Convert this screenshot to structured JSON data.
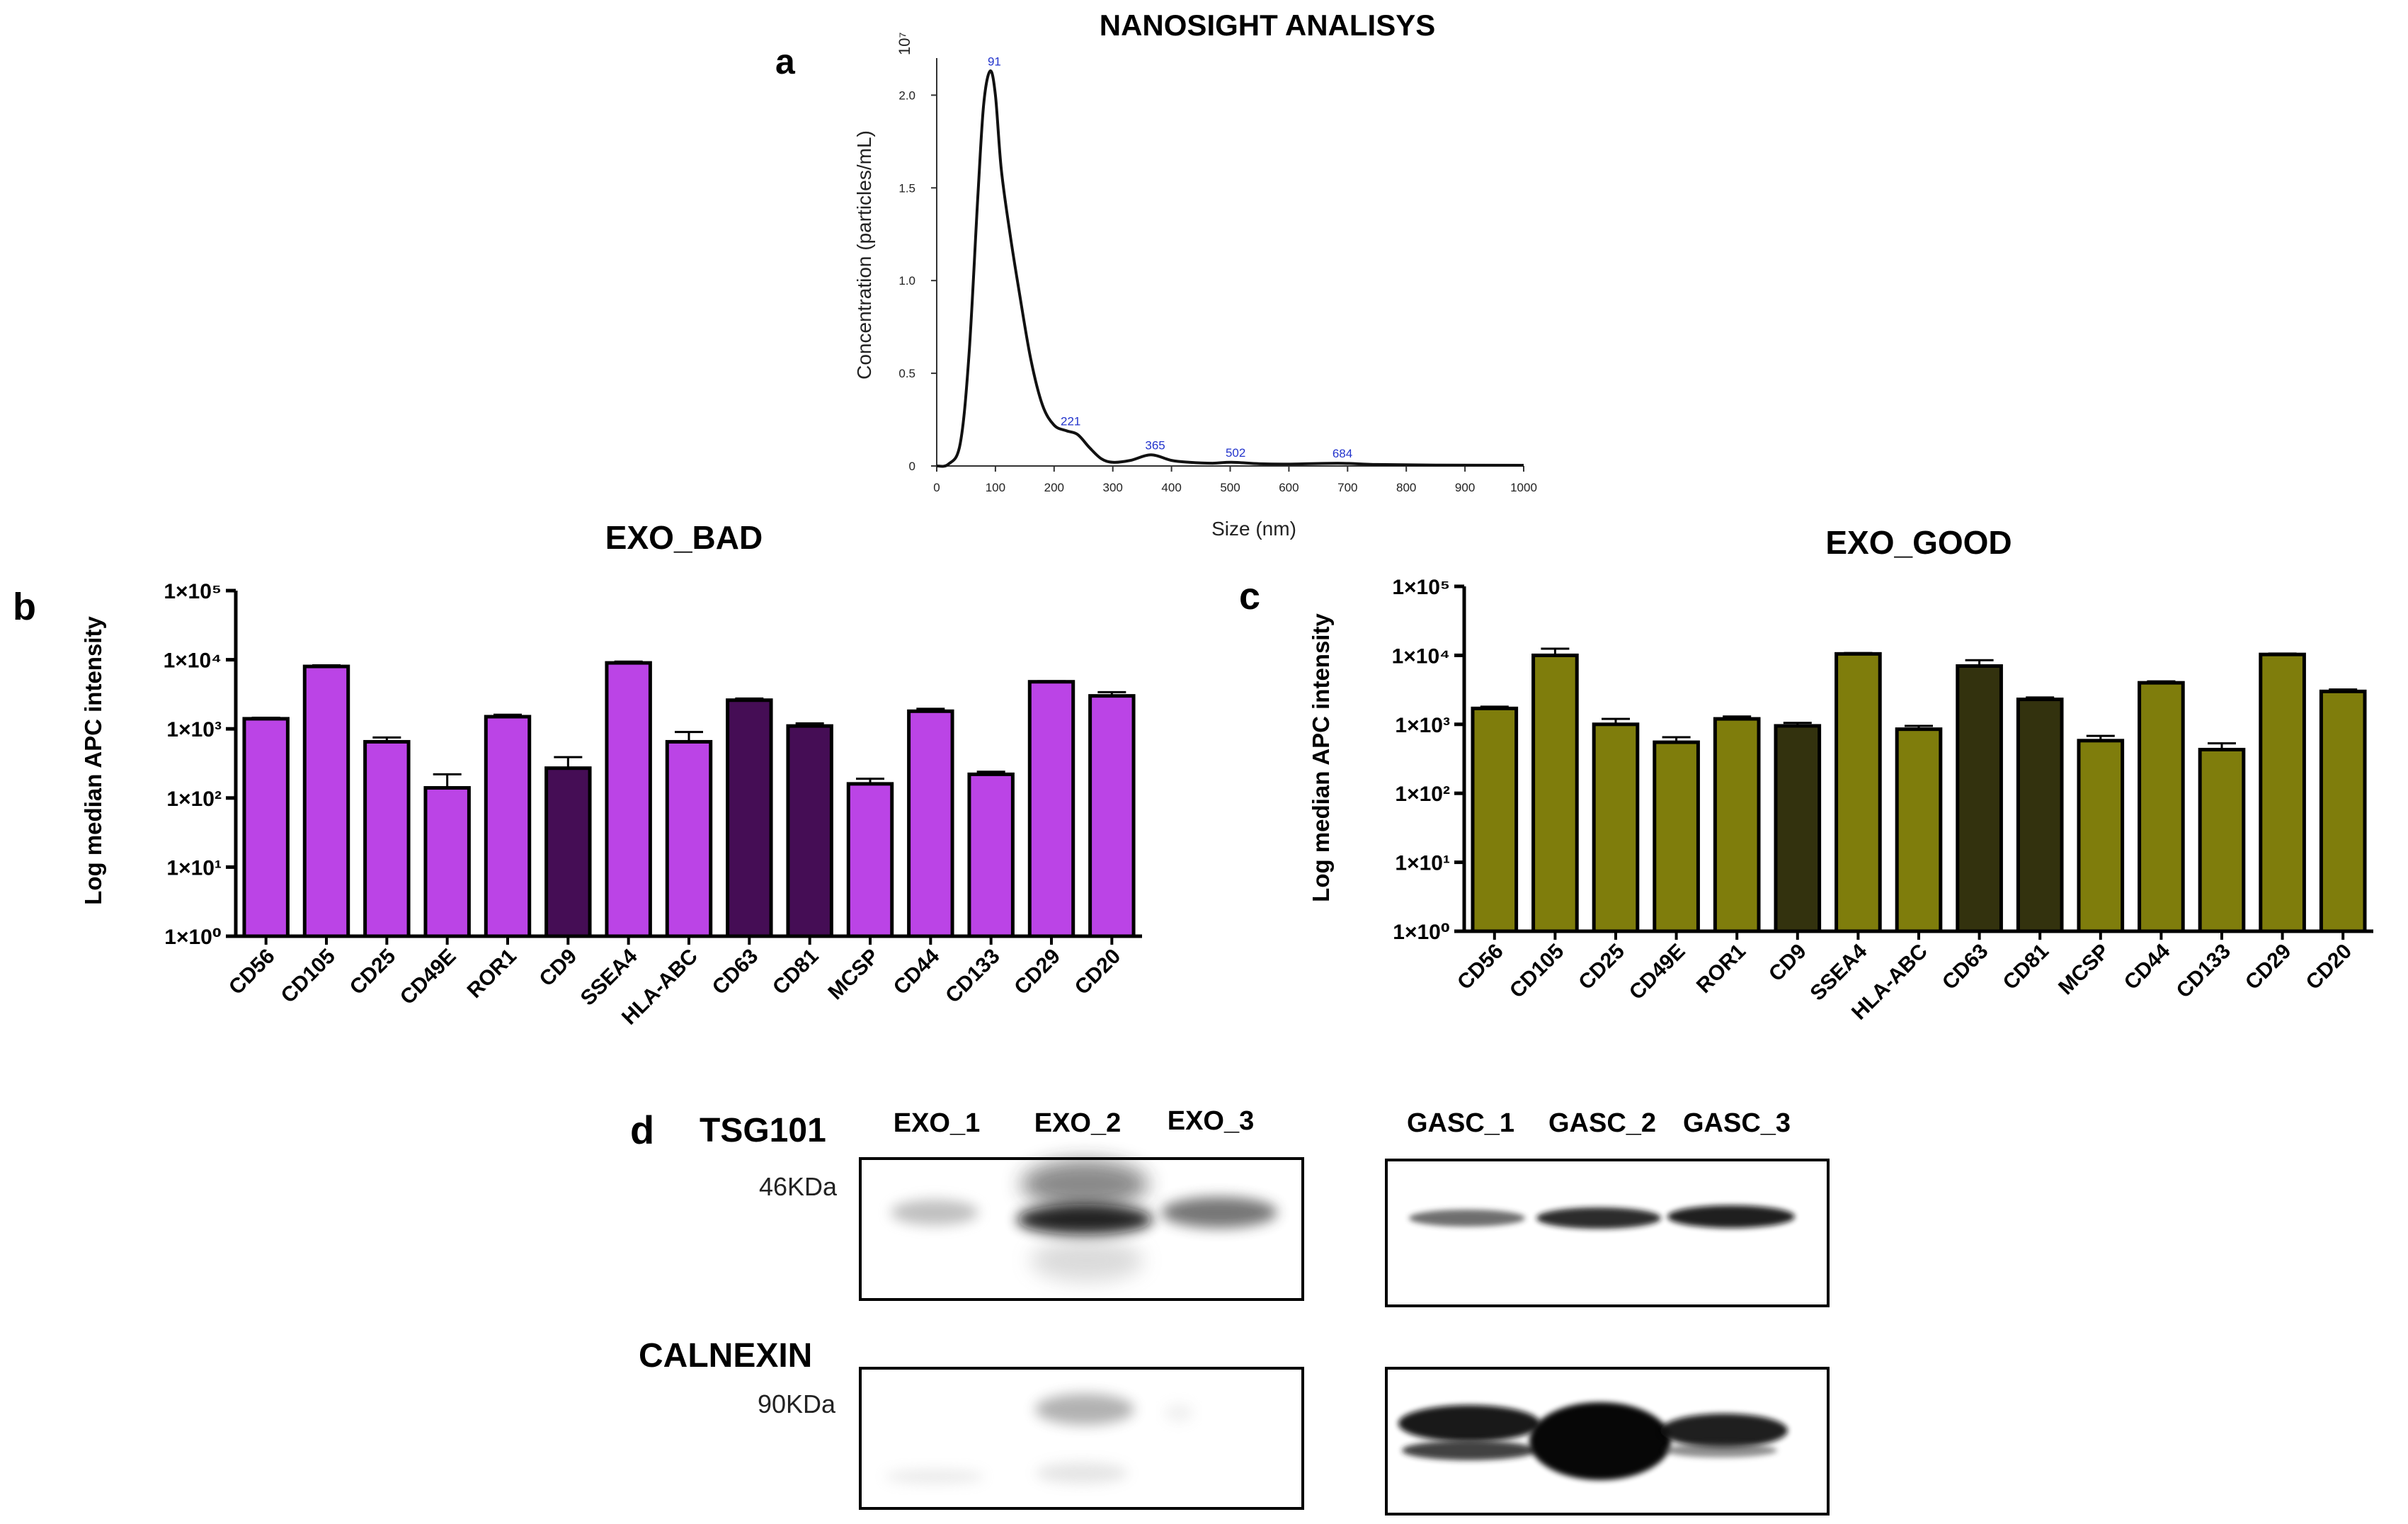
{
  "figure": {
    "panel_labels": {
      "a": "a",
      "b": "b",
      "c": "c",
      "d": "d"
    }
  },
  "chart_data": [
    {
      "id": "a",
      "type": "line",
      "title": "NANOSIGHT ANALISYS",
      "xlabel": "Size (nm)",
      "ylabel": "Concentration (particles/mL)",
      "y_scale_label": "10⁷",
      "xlim": [
        0,
        1000
      ],
      "ylim": [
        0,
        2.2
      ],
      "xticks": [
        0,
        100,
        200,
        300,
        400,
        500,
        600,
        700,
        800,
        900,
        1000
      ],
      "yticks": [
        0,
        0.5,
        1.0,
        1.5,
        2.0
      ],
      "ytick_labels": [
        "0",
        "0.5",
        "1.0",
        "1.5",
        "2.0"
      ],
      "peaks": [
        {
          "x": 91,
          "y": 2.13,
          "label": "91"
        },
        {
          "x": 221,
          "y": 0.19,
          "label": "221"
        },
        {
          "x": 365,
          "y": 0.06,
          "label": "365"
        },
        {
          "x": 502,
          "y": 0.02,
          "label": "502"
        },
        {
          "x": 684,
          "y": 0.015,
          "label": "684"
        }
      ],
      "x": [
        0,
        20,
        40,
        55,
        70,
        80,
        91,
        100,
        110,
        125,
        140,
        160,
        180,
        200,
        221,
        240,
        260,
        280,
        300,
        330,
        365,
        400,
        430,
        470,
        502,
        550,
        600,
        684,
        750,
        850,
        1000
      ],
      "y": [
        0,
        0.01,
        0.12,
        0.6,
        1.45,
        1.95,
        2.13,
        2.0,
        1.6,
        1.25,
        0.95,
        0.58,
        0.33,
        0.22,
        0.19,
        0.17,
        0.1,
        0.04,
        0.02,
        0.03,
        0.06,
        0.03,
        0.02,
        0.015,
        0.02,
        0.012,
        0.01,
        0.015,
        0.008,
        0.005,
        0.004
      ]
    },
    {
      "id": "b",
      "type": "bar",
      "title": "EXO_BAD",
      "ylabel": "Log median APC intensity",
      "yscale": "log",
      "ylim": [
        1,
        100000
      ],
      "ytick_labels": [
        "1×10⁰",
        "1×10¹",
        "1×10²",
        "1×10³",
        "1×10⁴",
        "1×10⁵"
      ],
      "categories": [
        "CD56",
        "CD105",
        "CD25",
        "CD49E",
        "ROR1",
        "CD9",
        "SSEA4",
        "HLA-ABC",
        "CD63",
        "CD81",
        "MCSP",
        "CD44",
        "CD133",
        "CD29",
        "CD20"
      ],
      "values": [
        1400,
        8000,
        650,
        140,
        1500,
        270,
        9000,
        650,
        2600,
        1100,
        160,
        1800,
        220,
        4800,
        3000
      ],
      "errors": [
        50,
        300,
        100,
        80,
        100,
        120,
        400,
        250,
        150,
        100,
        30,
        150,
        20,
        100,
        400
      ],
      "colors": [
        "#bb44e6",
        "#bb44e6",
        "#bb44e6",
        "#bb44e6",
        "#bb44e6",
        "#450d55",
        "#bb44e6",
        "#bb44e6",
        "#450d55",
        "#450d55",
        "#bb44e6",
        "#bb44e6",
        "#bb44e6",
        "#bb44e6",
        "#bb44e6"
      ]
    },
    {
      "id": "c",
      "type": "bar",
      "title": "EXO_GOOD",
      "ylabel": "Log median APC intensity",
      "yscale": "log",
      "ylim": [
        1,
        100000
      ],
      "ytick_labels": [
        "1×10⁰",
        "1×10¹",
        "1×10²",
        "1×10³",
        "1×10⁴",
        "1×10⁵"
      ],
      "categories": [
        "CD56",
        "CD105",
        "CD25",
        "CD49E",
        "ROR1",
        "CD9",
        "SSEA4",
        "HLA-ABC",
        "CD63",
        "CD81",
        "MCSP",
        "CD44",
        "CD133",
        "CD29",
        "CD20"
      ],
      "values": [
        1700,
        10000,
        1000,
        550,
        1200,
        950,
        10500,
        850,
        7000,
        2300,
        580,
        4000,
        430,
        10300,
        3000
      ],
      "errors": [
        100,
        2500,
        200,
        100,
        100,
        100,
        300,
        100,
        1500,
        150,
        100,
        200,
        100,
        300,
        200
      ],
      "colors": [
        "#7f7d0c",
        "#7f7d0c",
        "#7f7d0c",
        "#7f7d0c",
        "#7f7d0c",
        "#33320e",
        "#7f7d0c",
        "#7f7d0c",
        "#33320e",
        "#33320e",
        "#7f7d0c",
        "#7f7d0c",
        "#7f7d0c",
        "#7f7d0c",
        "#7f7d0c"
      ]
    }
  ],
  "western_blot": {
    "tsg101_label": "TSG101",
    "calnexin_label": "CALNEXIN",
    "tsg101_marker": "46KDa",
    "calnexin_marker": "90KDa",
    "exo_lanes": [
      "EXO_1",
      "EXO_2",
      "EXO_3"
    ],
    "gasc_lanes": [
      "GASC_1",
      "GASC_2",
      "GASC_3"
    ]
  }
}
